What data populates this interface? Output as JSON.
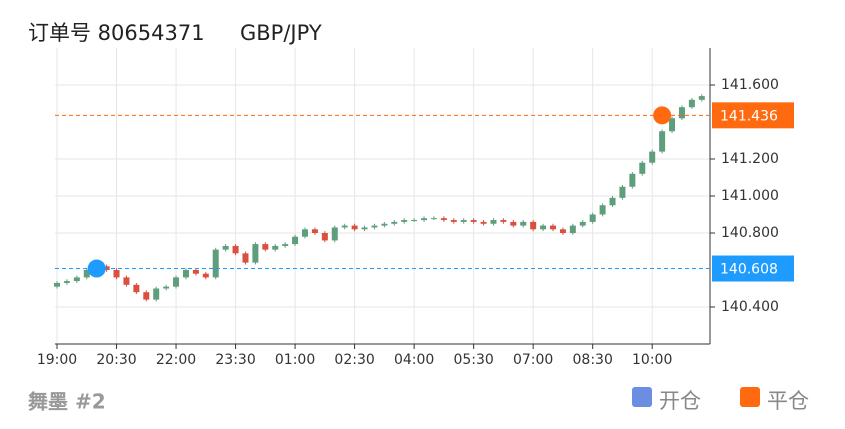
{
  "chart_data": {
    "type": "candlestick",
    "title": "订单号 80654371",
    "subtitle": "GBP/JPY",
    "footer": "舞墨 #2",
    "categories": [
      "19:00",
      "19:15",
      "19:30",
      "19:45",
      "20:00",
      "20:15",
      "20:30",
      "20:45",
      "21:00",
      "21:15",
      "21:30",
      "21:45",
      "22:00",
      "22:15",
      "22:30",
      "22:45",
      "23:00",
      "23:15",
      "23:30",
      "23:45",
      "00:00",
      "00:15",
      "00:30",
      "00:45",
      "01:00",
      "01:15",
      "01:30",
      "01:45",
      "02:00",
      "02:15",
      "02:30",
      "02:45",
      "03:00",
      "03:15",
      "03:30",
      "03:45",
      "04:00",
      "04:15",
      "04:30",
      "04:45",
      "05:00",
      "05:15",
      "05:30",
      "05:45",
      "06:00",
      "06:15",
      "06:30",
      "06:45",
      "07:00",
      "07:15",
      "07:30",
      "07:45",
      "08:00",
      "08:15",
      "08:30",
      "08:45",
      "09:00",
      "09:15",
      "09:30",
      "09:45",
      "10:00",
      "10:15",
      "10:30",
      "10:45",
      "11:00",
      "11:15"
    ],
    "open": [
      140.51,
      140.53,
      140.54,
      140.56,
      140.6,
      140.62,
      140.6,
      140.56,
      140.52,
      140.48,
      140.44,
      140.5,
      140.51,
      140.56,
      140.6,
      140.58,
      140.56,
      140.71,
      140.73,
      140.69,
      140.64,
      140.74,
      140.71,
      140.73,
      140.74,
      140.78,
      140.82,
      140.8,
      140.76,
      140.83,
      140.84,
      140.82,
      140.83,
      140.84,
      140.85,
      140.86,
      140.87,
      140.87,
      140.88,
      140.88,
      140.87,
      140.86,
      140.87,
      140.86,
      140.85,
      140.87,
      140.86,
      140.84,
      140.86,
      140.82,
      140.84,
      140.82,
      140.8,
      140.84,
      140.86,
      140.9,
      140.95,
      140.99,
      141.05,
      141.12,
      141.18,
      141.24,
      141.35,
      141.42,
      141.48,
      141.52
    ],
    "high": [
      140.54,
      140.55,
      140.57,
      140.61,
      140.63,
      140.63,
      140.61,
      140.57,
      140.53,
      140.49,
      140.51,
      140.52,
      140.57,
      140.61,
      140.61,
      140.59,
      140.72,
      140.74,
      140.74,
      140.7,
      140.75,
      140.75,
      140.74,
      140.75,
      140.79,
      140.83,
      140.83,
      140.81,
      140.84,
      140.85,
      140.85,
      140.84,
      140.85,
      140.86,
      140.87,
      140.88,
      140.88,
      140.89,
      140.89,
      140.89,
      140.88,
      140.88,
      140.88,
      140.87,
      140.88,
      140.88,
      140.87,
      140.87,
      140.87,
      140.85,
      140.85,
      140.83,
      140.85,
      140.87,
      140.91,
      140.96,
      141.0,
      141.06,
      141.13,
      141.19,
      141.25,
      141.36,
      141.43,
      141.49,
      141.53,
      141.55
    ],
    "low": [
      140.5,
      140.52,
      140.53,
      140.55,
      140.59,
      140.59,
      140.55,
      140.51,
      140.47,
      140.43,
      140.43,
      140.49,
      140.5,
      140.55,
      140.57,
      140.55,
      140.55,
      140.7,
      140.68,
      140.63,
      140.63,
      140.7,
      140.7,
      140.72,
      140.73,
      140.77,
      140.79,
      140.75,
      140.75,
      140.82,
      140.81,
      140.81,
      140.82,
      140.83,
      140.84,
      140.85,
      140.86,
      140.86,
      140.87,
      140.86,
      140.85,
      140.85,
      140.85,
      140.84,
      140.84,
      140.85,
      140.83,
      140.83,
      140.81,
      140.81,
      140.81,
      140.79,
      140.79,
      140.83,
      140.85,
      140.89,
      140.94,
      140.98,
      141.04,
      141.11,
      141.17,
      141.23,
      141.34,
      141.41,
      141.47,
      141.51
    ],
    "close": [
      140.53,
      140.54,
      140.56,
      140.6,
      140.62,
      140.6,
      140.56,
      140.52,
      140.48,
      140.44,
      140.5,
      140.51,
      140.56,
      140.6,
      140.58,
      140.56,
      140.71,
      140.73,
      140.69,
      140.64,
      140.74,
      140.71,
      140.73,
      140.74,
      140.78,
      140.82,
      140.8,
      140.76,
      140.83,
      140.84,
      140.82,
      140.83,
      140.84,
      140.85,
      140.86,
      140.87,
      140.87,
      140.88,
      140.88,
      140.87,
      140.86,
      140.87,
      140.86,
      140.85,
      140.87,
      140.86,
      140.84,
      140.86,
      140.82,
      140.84,
      140.82,
      140.8,
      140.84,
      140.86,
      140.9,
      140.95,
      140.99,
      141.05,
      141.12,
      141.18,
      141.24,
      141.35,
      141.42,
      141.48,
      141.52,
      141.54
    ],
    "up_color": "#5e9e7c",
    "down_color": "#d9503f",
    "ylim": [
      140.2,
      141.8
    ],
    "yticks": [
      {
        "value": 140.4,
        "label": "140.400"
      },
      {
        "value": 140.8,
        "label": "140.800"
      },
      {
        "value": 141.0,
        "label": "141.000"
      },
      {
        "value": 141.2,
        "label": "141.200"
      },
      {
        "value": 141.6,
        "label": "141.600"
      }
    ],
    "xticks": [
      {
        "value": 0,
        "label": "19:00"
      },
      {
        "value": 6,
        "label": "20:30"
      },
      {
        "value": 12,
        "label": "22:00"
      },
      {
        "value": 18,
        "label": "23:30"
      },
      {
        "value": 24,
        "label": "01:00"
      },
      {
        "value": 30,
        "label": "02:30"
      },
      {
        "value": 36,
        "label": "04:00"
      },
      {
        "value": 42,
        "label": "05:30"
      },
      {
        "value": 48,
        "label": "07:00"
      },
      {
        "value": 54,
        "label": "08:30"
      },
      {
        "value": 60,
        "label": "10:00"
      }
    ],
    "grid": true,
    "markers": [
      {
        "name": "开仓",
        "time": "20:00",
        "value": 140.608,
        "color": "#1e9bff",
        "legend_color": "#6b8ee3"
      },
      {
        "name": "平仓",
        "time": "10:15",
        "value": 141.436,
        "color": "#ff6a10",
        "legend_color": "#ff6a10"
      }
    ]
  }
}
